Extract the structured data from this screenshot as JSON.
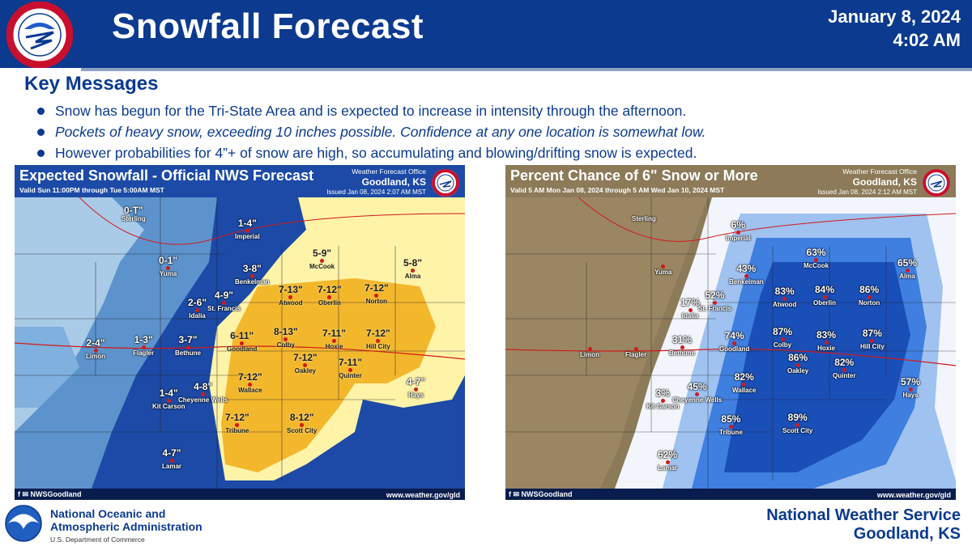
{
  "header": {
    "title": "Snowfall Forecast",
    "date": "January 8, 2024",
    "time": "4:02 AM",
    "logo_icon": "nws-seal-icon"
  },
  "key_messages": {
    "title": "Key Messages",
    "items": [
      "Snow has begun for the Tri-State Area and is expected to increase in intensity through the afternoon.",
      "Pockets of heavy snow, exceeding 10 inches possible. Confidence at any one location is somewhat low.",
      "However probabilities for 4”+ of snow are high, so accumulating and blowing/drifting snow is expected."
    ]
  },
  "left_map": {
    "title": "Expected Snowfall - Official NWS Forecast",
    "valid": "Valid Sun 11:00PM through Tue 5:00AM MST",
    "office_line": "Weather Forecast Office",
    "office_city": "Goodland, KS",
    "issued": "Issued Jan 08, 2024 2:07 AM MST",
    "social": "NWSGoodland",
    "website": "www.weather.gov/gld",
    "colors": {
      "light": "#a9cbe8",
      "mid": "#5d93cc",
      "dark": "#1c4aa6",
      "pale_yellow": "#fff3a8",
      "yellow": "#f3b72c"
    },
    "locations": [
      {
        "id": "sterling",
        "value": "0-T\"",
        "city": "Sterling"
      },
      {
        "id": "yuma",
        "value": "0-1\"",
        "city": "Yuma"
      },
      {
        "id": "imperial",
        "value": "1-4\"",
        "city": "Imperial"
      },
      {
        "id": "benkelman",
        "value": "3-8\"",
        "city": "Benkelman"
      },
      {
        "id": "mccook",
        "value": "5-9\"",
        "city": "McCook"
      },
      {
        "id": "alma",
        "value": "5-8\"",
        "city": "Alma"
      },
      {
        "id": "idalia",
        "value": "2-6\"",
        "city": "Idalia"
      },
      {
        "id": "st-francis",
        "value": "4-9\"",
        "city": "St. Francis"
      },
      {
        "id": "atwood",
        "value": "7-13\"",
        "city": "Atwood"
      },
      {
        "id": "oberlin",
        "value": "7-12\"",
        "city": "Oberlin"
      },
      {
        "id": "norton",
        "value": "7-12\"",
        "city": "Norton"
      },
      {
        "id": "limon",
        "value": "2-4\"",
        "city": "Limon"
      },
      {
        "id": "flagler",
        "value": "1-3\"",
        "city": "Flagler"
      },
      {
        "id": "bethune",
        "value": "3-7\"",
        "city": "Bethune"
      },
      {
        "id": "goodland",
        "value": "6-11\"",
        "city": "Goodland"
      },
      {
        "id": "colby",
        "value": "8-13\"",
        "city": "Colby"
      },
      {
        "id": "hoxie",
        "value": "7-11\"",
        "city": "Hoxie"
      },
      {
        "id": "hill-city",
        "value": "7-12\"",
        "city": "Hill City"
      },
      {
        "id": "oakley",
        "value": "7-12\"",
        "city": "Oakley"
      },
      {
        "id": "quinter",
        "value": "7-11\"",
        "city": "Quinter"
      },
      {
        "id": "hays",
        "value": "4-7\"",
        "city": "Hays"
      },
      {
        "id": "kit-carson",
        "value": "1-4\"",
        "city": "Kit Carson"
      },
      {
        "id": "cheyenne-wells",
        "value": "4-8\"",
        "city": "Cheyenne Wells"
      },
      {
        "id": "wallace",
        "value": "7-12\"",
        "city": "Wallace"
      },
      {
        "id": "tribune",
        "value": "7-12\"",
        "city": "Tribune"
      },
      {
        "id": "scott-city",
        "value": "8-12\"",
        "city": "Scott City"
      },
      {
        "id": "lamar",
        "value": "4-7\"",
        "city": "Lamar"
      }
    ]
  },
  "right_map": {
    "title": "Percent Chance of 6\" Snow or More",
    "valid": "Valid 5 AM Mon Jan 08, 2024 through 5 AM Wed Jan 10, 2024 MST",
    "office_line": "Weather Forecast Office",
    "office_city": "Goodland, KS",
    "issued": "Issued Jan 08, 2024 2:12 AM MST",
    "social": "NWSGoodland",
    "website": "www.weather.gov/gld",
    "colors": {
      "terrain": "#8c7a58",
      "white": "#f2f6fc",
      "light_blue": "#9fc2f0",
      "blue": "#3f7fe0",
      "deep_blue": "#1a4fb8"
    },
    "locations": [
      {
        "id": "sterling",
        "value": "",
        "city": "Sterling"
      },
      {
        "id": "yuma",
        "value": "",
        "city": "Yuma"
      },
      {
        "id": "imperial",
        "value": "6%",
        "city": "Imperial"
      },
      {
        "id": "benkelman",
        "value": "43%",
        "city": "Benkelman"
      },
      {
        "id": "mccook",
        "value": "63%",
        "city": "McCook"
      },
      {
        "id": "alma",
        "value": "65%",
        "city": "Alma"
      },
      {
        "id": "idalia",
        "value": "17%",
        "city": "Idalia"
      },
      {
        "id": "st-francis",
        "value": "52%",
        "city": "St. Francis"
      },
      {
        "id": "atwood",
        "value": "83%",
        "city": "Atwood"
      },
      {
        "id": "oberlin",
        "value": "84%",
        "city": "Oberlin"
      },
      {
        "id": "norton",
        "value": "86%",
        "city": "Norton"
      },
      {
        "id": "limon",
        "value": "",
        "city": "Limon"
      },
      {
        "id": "flagler",
        "value": "",
        "city": "Flagler"
      },
      {
        "id": "bethune",
        "value": "31%",
        "city": "Bethune"
      },
      {
        "id": "goodland",
        "value": "74%",
        "city": "Goodland"
      },
      {
        "id": "colby",
        "value": "87%",
        "city": "Colby"
      },
      {
        "id": "hoxie",
        "value": "83%",
        "city": "Hoxie"
      },
      {
        "id": "hill-city",
        "value": "87%",
        "city": "Hill City"
      },
      {
        "id": "oakley",
        "value": "86%",
        "city": "Oakley"
      },
      {
        "id": "quinter",
        "value": "82%",
        "city": "Quinter"
      },
      {
        "id": "hays",
        "value": "57%",
        "city": "Hays"
      },
      {
        "id": "kit-carson",
        "value": "3%",
        "city": "Kit Carson"
      },
      {
        "id": "cheyenne-wells",
        "value": "45%",
        "city": "Cheyenne Wells"
      },
      {
        "id": "wallace",
        "value": "82%",
        "city": "Wallace"
      },
      {
        "id": "tribune",
        "value": "85%",
        "city": "Tribune"
      },
      {
        "id": "scott-city",
        "value": "89%",
        "city": "Scott City"
      },
      {
        "id": "lamar",
        "value": "62%",
        "city": "Lamar"
      }
    ]
  },
  "footer": {
    "noaa_line1": "National Oceanic and",
    "noaa_line2": "Atmospheric Administration",
    "noaa_dept": "U.S. Department of Commerce",
    "nws_line1": "National Weather Service",
    "nws_line2": "Goodland, KS",
    "noaa_icon": "noaa-logo-icon"
  }
}
